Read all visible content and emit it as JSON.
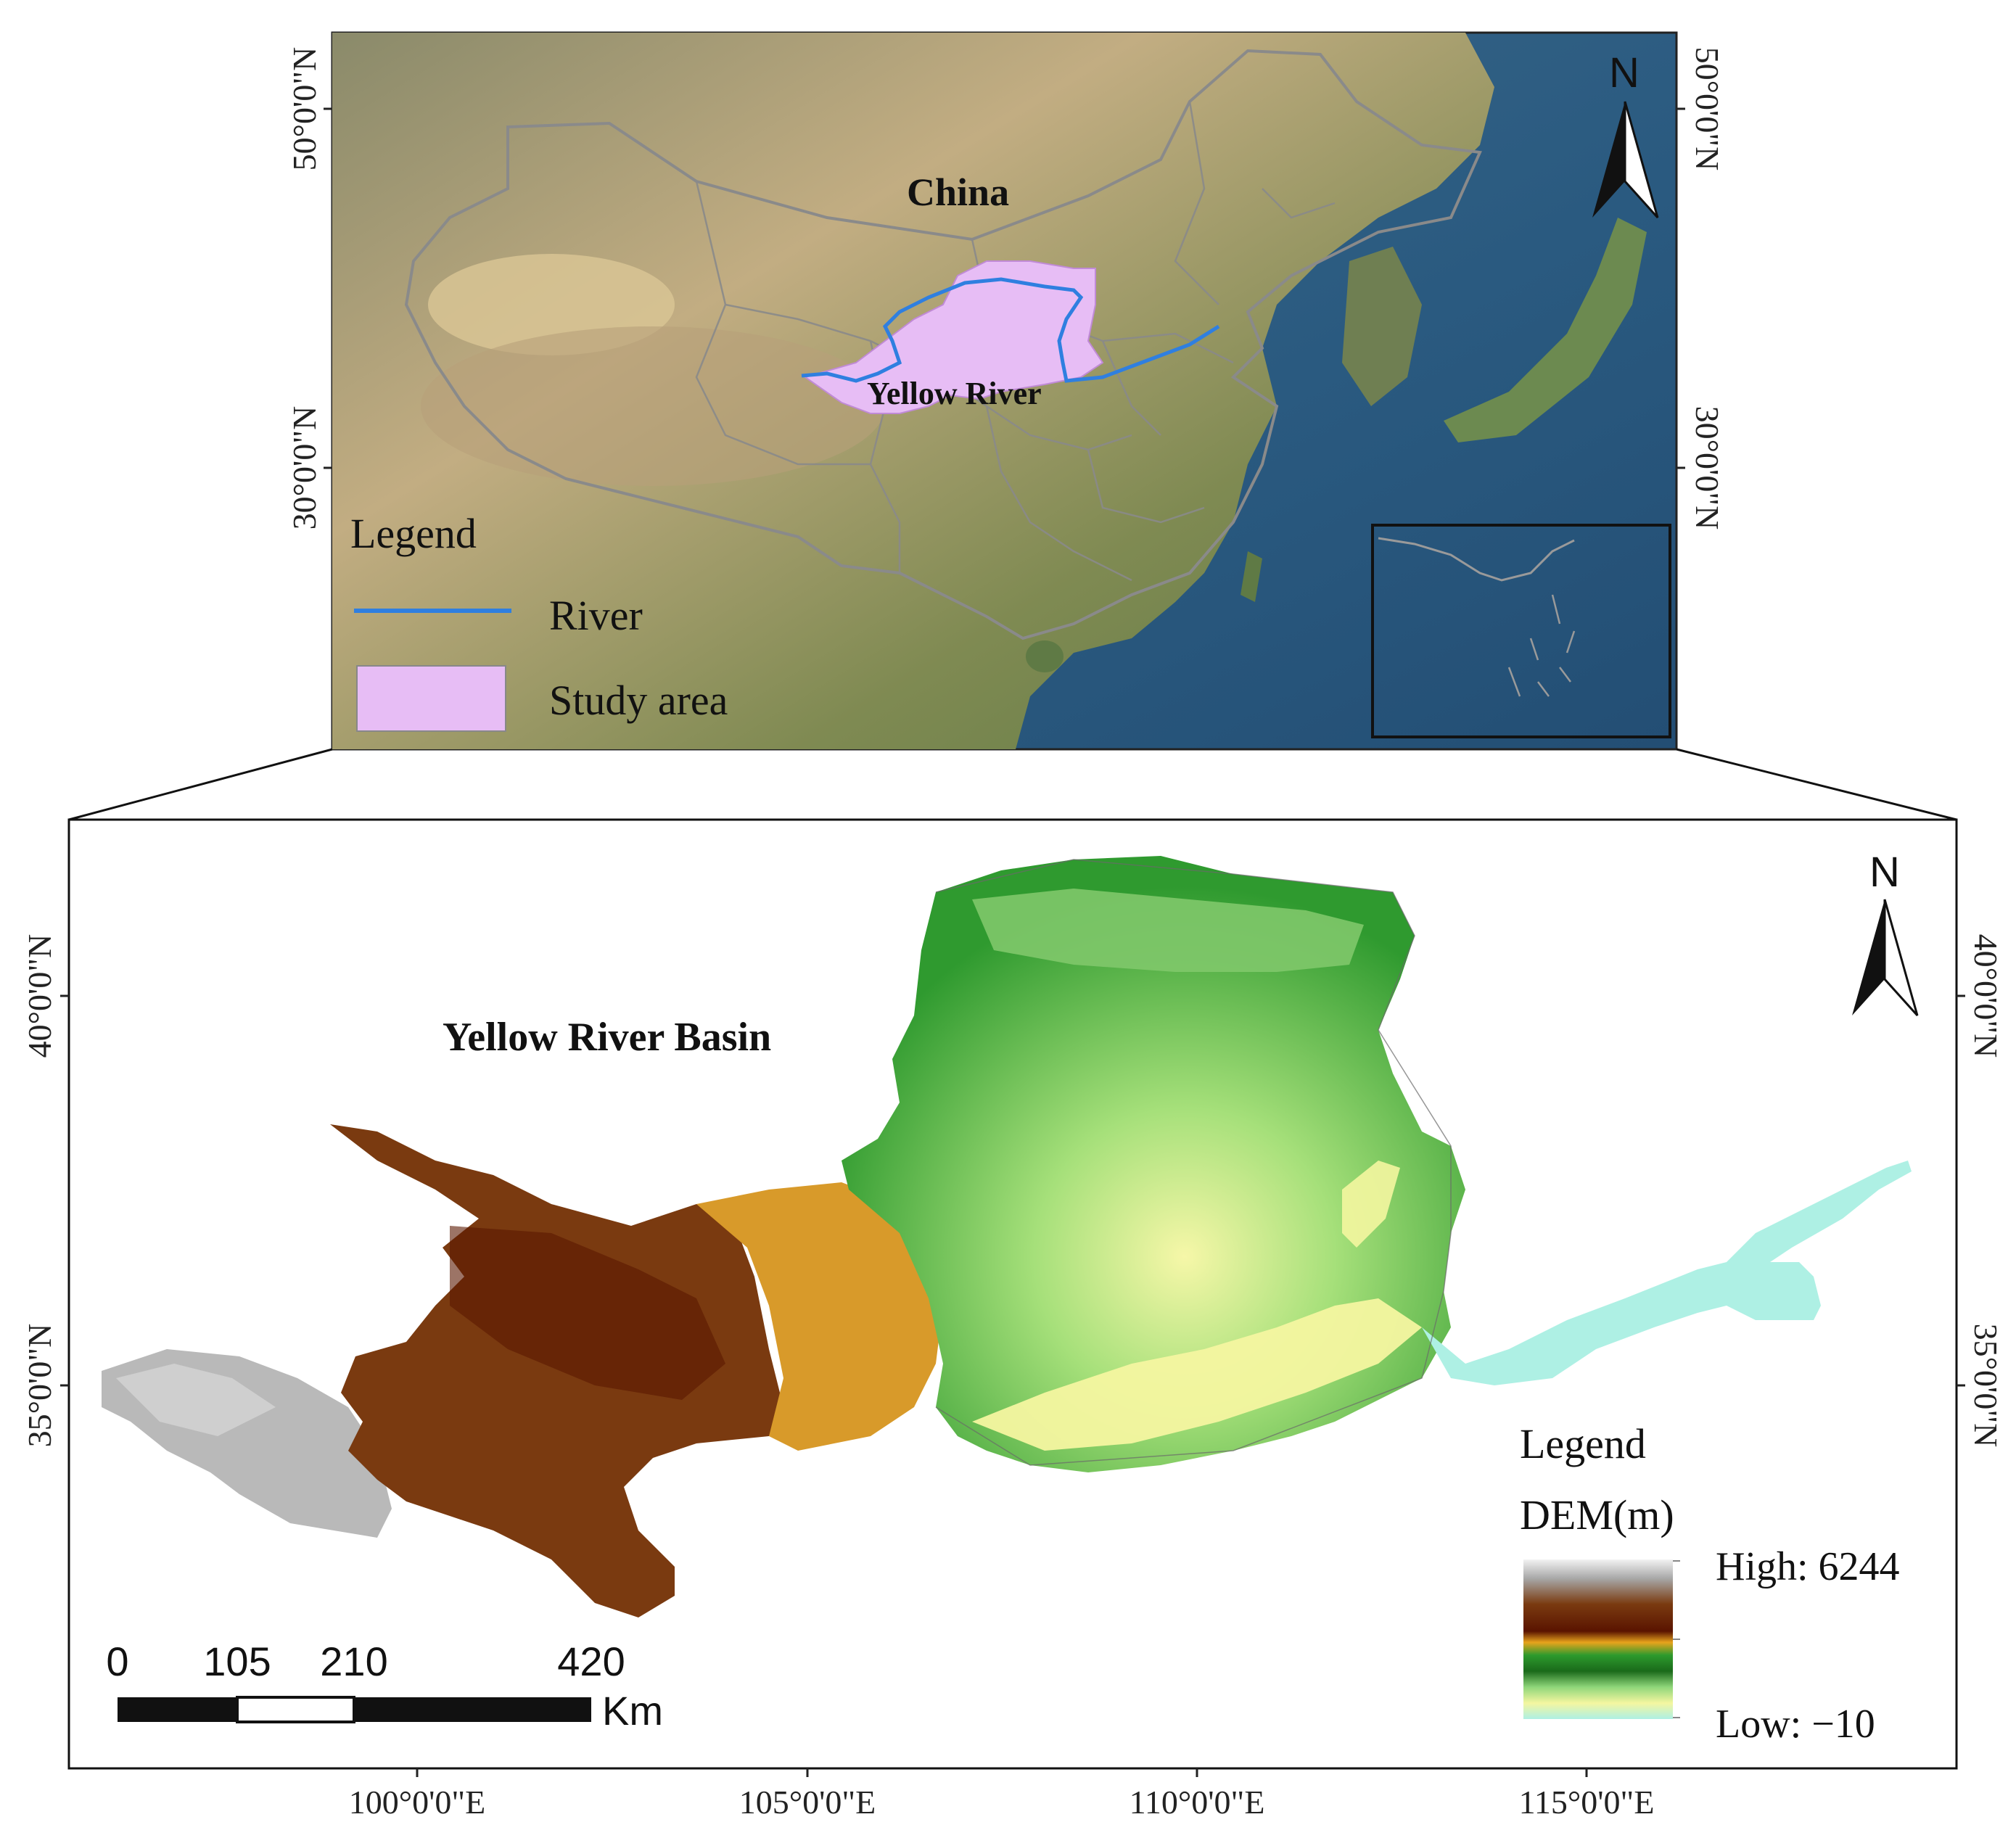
{
  "overview_map": {
    "country_label": "China",
    "river_label": "Yellow River",
    "lat_labels": [
      "50°0'0\"N",
      "30°0'0\"N"
    ],
    "north_label": "N",
    "legend": {
      "title": "Legend",
      "items": [
        {
          "label": "River",
          "color": "#2f7fe0"
        },
        {
          "label": "Study area",
          "color": "#e7bdf5"
        }
      ]
    },
    "colors": {
      "ocean": "#2d5f86",
      "land": "#b9a27a",
      "boundary": "#8a8a8a",
      "study_area": "#e7bdf5",
      "river": "#2f7fe0"
    }
  },
  "basin_map": {
    "title": "Yellow River Basin",
    "north_label": "N",
    "lat_labels": [
      "40°0'0\"N",
      "35°0'0\"N"
    ],
    "lon_labels": [
      "100°0'0\"E",
      "105°0'0\"E",
      "110°0'0\"E",
      "115°0'0\"E"
    ],
    "scale_bar": {
      "ticks": [
        "0",
        "105",
        "210",
        "420"
      ],
      "unit": "Km"
    },
    "legend": {
      "title": "Legend",
      "subtitle": "DEM(m)",
      "high_label": "High: 6244",
      "low_label": "Low: −10",
      "ramp_colors": [
        "#d8d8d8",
        "#7a3a10",
        "#6b1a00",
        "#e6a21a",
        "#2d9a2d",
        "#1a6a1a",
        "#8fd67a",
        "#f4f6a0",
        "#aef0e4"
      ]
    }
  }
}
